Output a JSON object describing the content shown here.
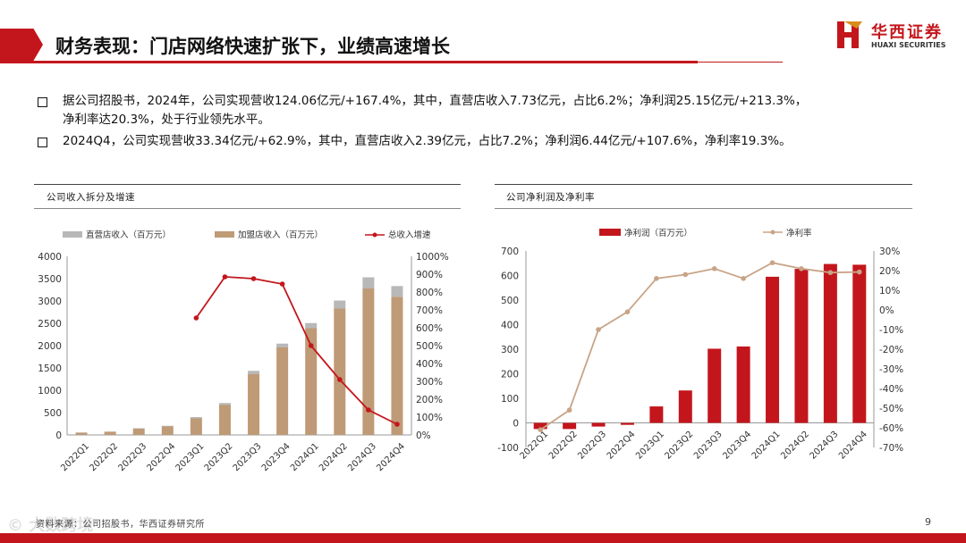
{
  "header": {
    "title": "财务表现：门店网络快速扩张下，业绩高速增长",
    "logo_cn": "华西证券",
    "logo_en": "HUAXI SECURITIES"
  },
  "bullets": [
    {
      "line1": "据公司招股书，2024年，公司实现营收124.06亿元/+167.4%，其中，直营店收入7.73亿元，占比6.2%；净利润25.15亿元/+213.3%，",
      "line2": "净利率达20.3%，处于行业领先水平。"
    },
    {
      "line1": "2024Q4，公司实现营收33.34亿元/+62.9%，其中，直营店收入2.39亿元，占比7.2%；净利润6.44亿元/+107.6%，净利率19.3%。"
    }
  ],
  "footer": {
    "source": "资料来源：公司招股书，华西证券研究所",
    "page": "9",
    "watermark": "© 大数跨境"
  },
  "colors": {
    "brand_red": "#c3161c",
    "direct": "#b8b8b8",
    "franchise": "#bf9a76",
    "growth_line": "#c3161c",
    "margin_line": "#c8a487"
  },
  "chart_data": [
    {
      "type": "bar",
      "title": "公司收入拆分及增速",
      "stacked": true,
      "categories": [
        "2022Q1",
        "2022Q2",
        "2022Q3",
        "2022Q4",
        "2023Q1",
        "2023Q2",
        "2023Q3",
        "2023Q4",
        "2024Q1",
        "2024Q2",
        "2024Q3",
        "2024Q4"
      ],
      "series": [
        {
          "name": "直营店收入（百万元）",
          "values": [
            5,
            5,
            10,
            15,
            30,
            45,
            75,
            85,
            115,
            180,
            250,
            239
          ]
        },
        {
          "name": "加盟店收入（百万元）",
          "values": [
            50,
            70,
            140,
            190,
            370,
            670,
            1360,
            1960,
            2390,
            2830,
            3280,
            3095
          ]
        },
        {
          "name": "总收入增速",
          "axis": "right",
          "values": [
            null,
            null,
            null,
            null,
            655,
            885,
            875,
            845,
            500,
            310,
            140,
            60
          ]
        }
      ],
      "ylim": [
        0,
        4000
      ],
      "yticks": [
        "0",
        "500",
        "1000",
        "1500",
        "2000",
        "2500",
        "3000",
        "3500",
        "4000"
      ],
      "y2lim": [
        0,
        1000
      ],
      "y2ticks": [
        "0%",
        "100%",
        "200%",
        "300%",
        "400%",
        "500%",
        "600%",
        "700%",
        "800%",
        "900%",
        "1000%"
      ],
      "legend": "top"
    },
    {
      "type": "bar",
      "title": "公司净利润及净利率",
      "categories": [
        "2022Q1",
        "2022Q2",
        "2022Q3",
        "2022Q4",
        "2023Q1",
        "2023Q2",
        "2023Q3",
        "2023Q4",
        "2024Q1",
        "2024Q2",
        "2024Q3",
        "2024Q4"
      ],
      "series": [
        {
          "name": "净利润（百万元）",
          "values": [
            -25,
            -25,
            -15,
            -8,
            67,
            132,
            302,
            311,
            595,
            627,
            647,
            644
          ]
        },
        {
          "name": "净利率",
          "axis": "right",
          "values": [
            -61,
            -51,
            -10,
            -1,
            16,
            18,
            21,
            16,
            24,
            21,
            19,
            19.3
          ]
        }
      ],
      "ylim": [
        -100,
        700
      ],
      "yticks": [
        "-100",
        "0",
        "100",
        "200",
        "300",
        "400",
        "500",
        "600",
        "700"
      ],
      "y2lim": [
        -70,
        30
      ],
      "y2ticks": [
        "-70%",
        "-60%",
        "-50%",
        "-40%",
        "-30%",
        "-20%",
        "-10%",
        "0%",
        "10%",
        "20%",
        "30%"
      ],
      "legend": "top"
    }
  ]
}
